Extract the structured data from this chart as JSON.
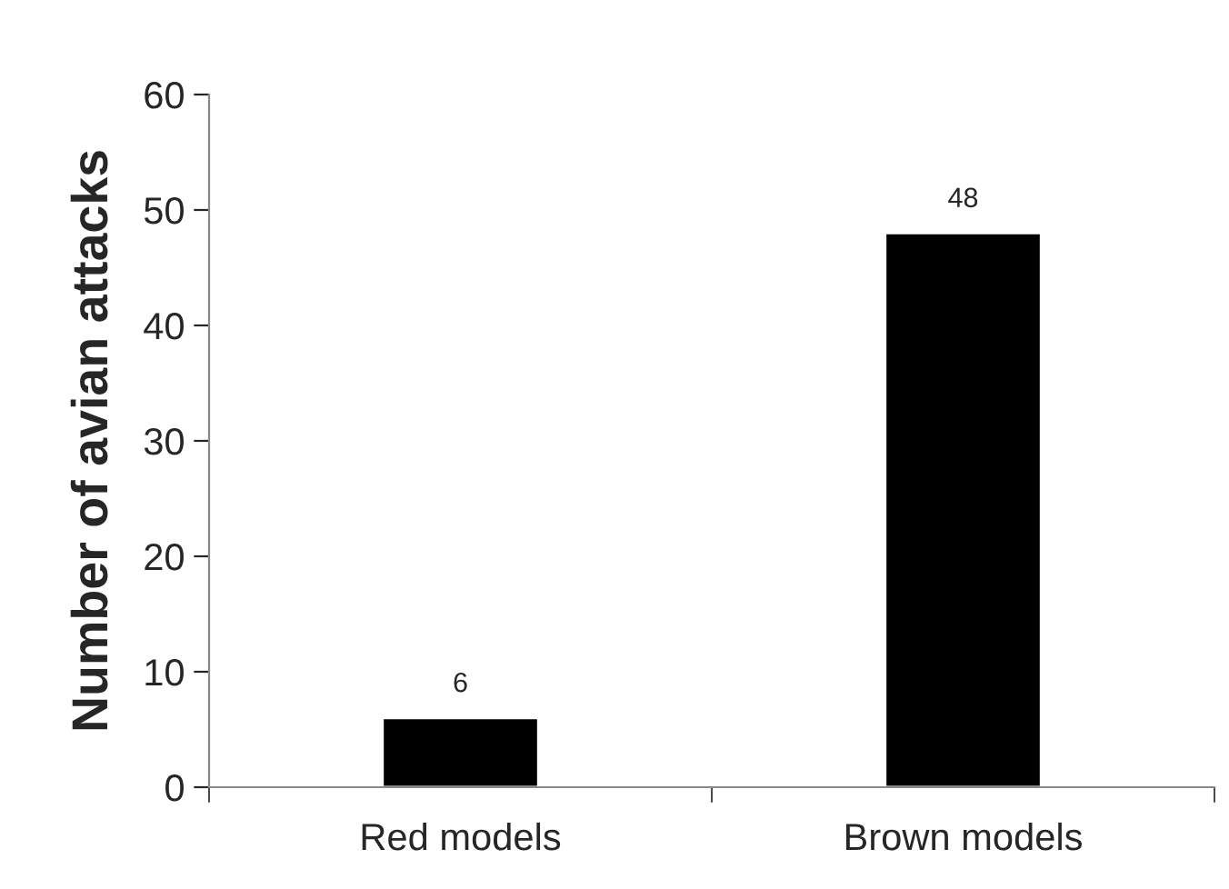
{
  "chart_data": {
    "type": "bar",
    "ylabel": "Number of avian attacks",
    "categories": [
      "Red models",
      "Brown models"
    ],
    "values": [
      6,
      48
    ],
    "color": "#000000",
    "ylim": [
      0,
      60
    ],
    "yticks": [
      0,
      10,
      20,
      30,
      40,
      50,
      60
    ],
    "data_labels": true,
    "grid": false,
    "legend": false
  }
}
